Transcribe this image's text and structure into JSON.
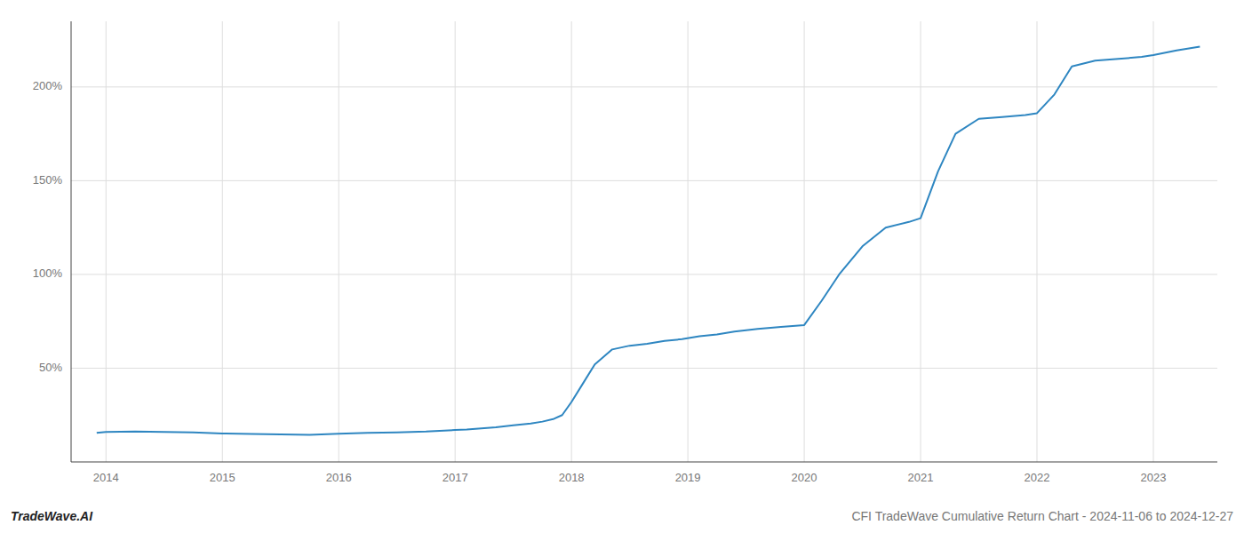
{
  "chart_data": {
    "type": "line",
    "title": "CFI TradeWave Cumulative Return Chart - 2024-11-06 to 2024-12-27",
    "annotations": [
      "TradeWave.AI"
    ],
    "color": "#2e86c1",
    "x": [
      2013.92,
      2014.0,
      2014.25,
      2014.5,
      2014.75,
      2015.0,
      2015.25,
      2015.5,
      2015.75,
      2016.0,
      2016.25,
      2016.5,
      2016.75,
      2017.0,
      2017.1,
      2017.2,
      2017.35,
      2017.5,
      2017.65,
      2017.75,
      2017.85,
      2017.92,
      2018.0,
      2018.1,
      2018.2,
      2018.35,
      2018.5,
      2018.65,
      2018.8,
      2018.95,
      2019.1,
      2019.25,
      2019.4,
      2019.6,
      2019.8,
      2020.0,
      2020.15,
      2020.3,
      2020.5,
      2020.7,
      2020.9,
      2021.0,
      2021.15,
      2021.3,
      2021.5,
      2021.7,
      2021.9,
      2022.0,
      2022.15,
      2022.3,
      2022.5,
      2022.7,
      2022.9,
      2023.0,
      2023.2,
      2023.4
    ],
    "values": [
      15.5,
      16.0,
      16.2,
      16.0,
      15.8,
      15.2,
      14.9,
      14.7,
      14.5,
      15.0,
      15.5,
      15.8,
      16.2,
      17.0,
      17.3,
      17.8,
      18.5,
      19.5,
      20.5,
      21.5,
      23.0,
      25.0,
      32.0,
      42.0,
      52.0,
      60.0,
      62.0,
      63.0,
      64.5,
      65.5,
      67.0,
      68.0,
      69.5,
      71.0,
      72.0,
      73.0,
      86.0,
      100.0,
      115.0,
      125.0,
      128.0,
      130.0,
      155.0,
      175.0,
      183.0,
      184.0,
      185.0,
      186.0,
      196.0,
      211.0,
      214.0,
      215.0,
      216.0,
      217.0,
      219.5,
      221.5
    ],
    "xlim": [
      2013.7,
      2023.55
    ],
    "ylim": [
      0,
      235
    ],
    "xticks": [
      2014,
      2015,
      2016,
      2017,
      2018,
      2019,
      2020,
      2021,
      2022,
      2023
    ],
    "yticks": [
      {
        "value": 50,
        "label": "50%"
      },
      {
        "value": 100,
        "label": "100%"
      },
      {
        "value": 150,
        "label": "150%"
      },
      {
        "value": 200,
        "label": "200%"
      }
    ],
    "grid": true
  }
}
